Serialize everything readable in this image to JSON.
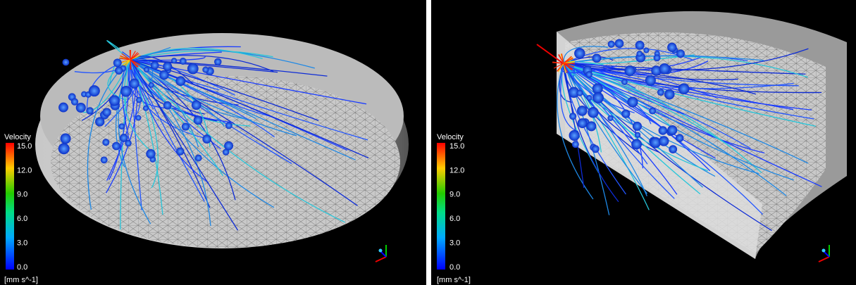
{
  "panels": [
    {
      "legend": {
        "title": "Velocity",
        "ticks": [
          "15.0",
          "12.0",
          "9.0",
          "6.0",
          "3.0",
          "0.0"
        ],
        "unit": "[mm s^-1]"
      }
    },
    {
      "legend": {
        "title": "Velocity",
        "ticks": [
          "15.0",
          "12.0",
          "9.0",
          "6.0",
          "3.0",
          "0.0"
        ],
        "unit": "[mm s^-1]"
      }
    }
  ]
}
